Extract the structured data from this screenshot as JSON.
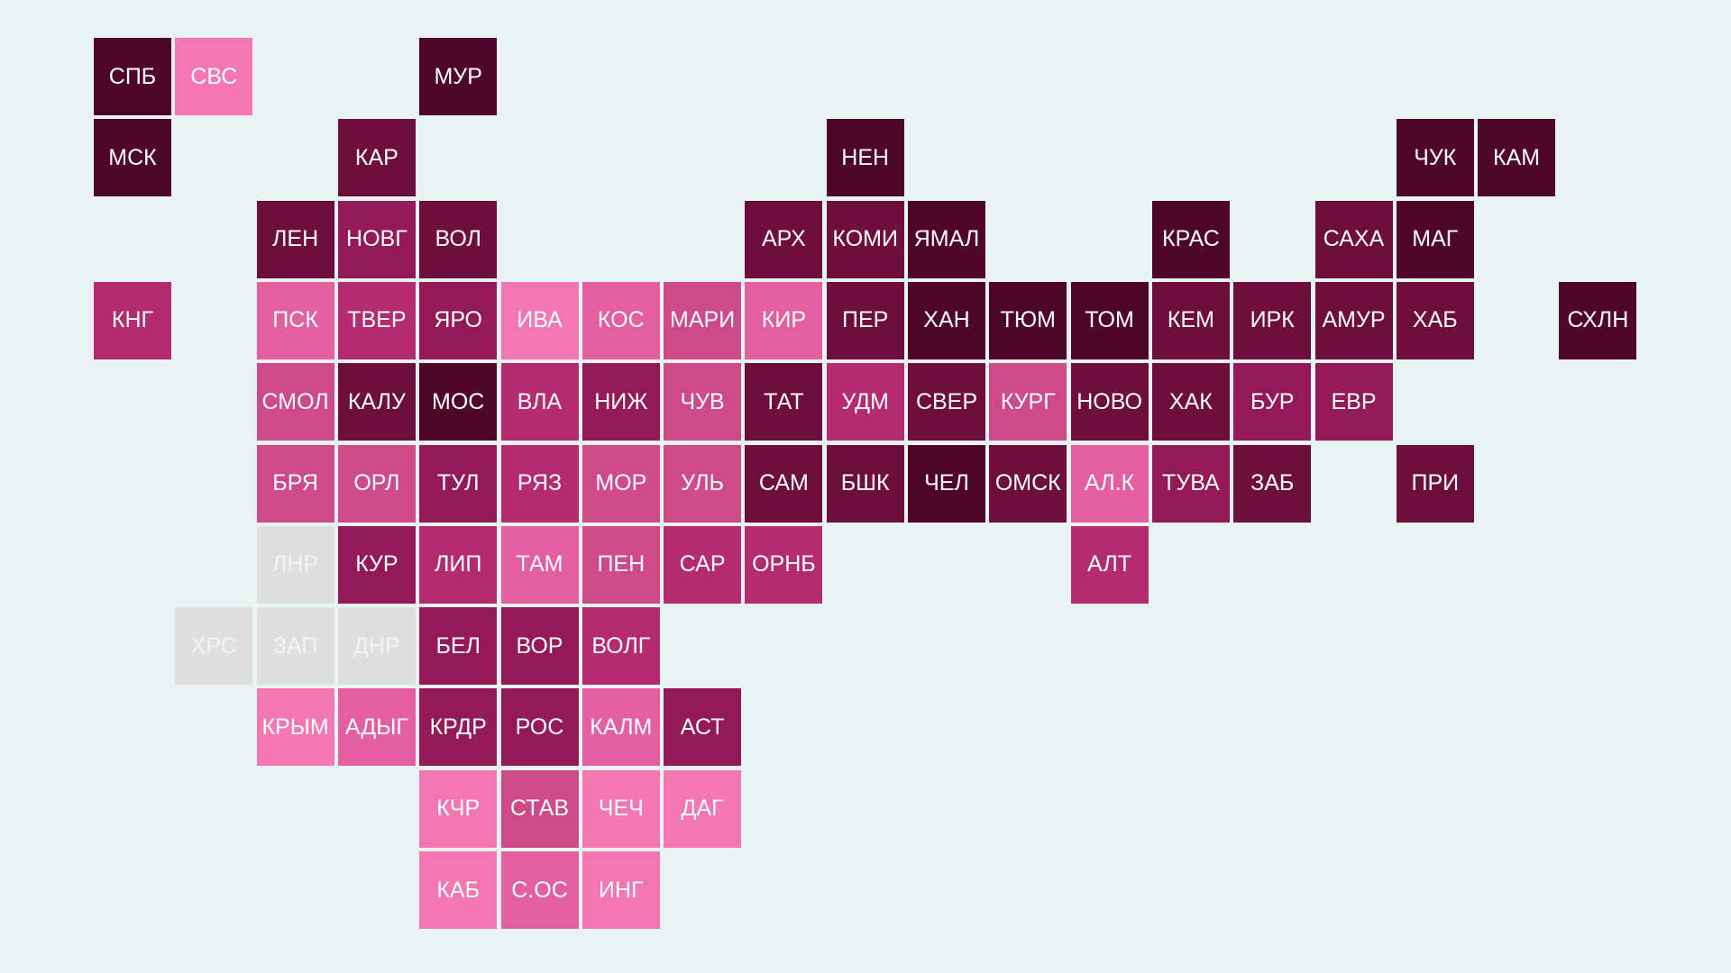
{
  "palette": {
    "background": "#e8f4f2",
    "no_data": "#dfdfdf",
    "levels": [
      "#f277b2",
      "#e45f9f",
      "#cf4a88",
      "#b42c6f",
      "#931a57",
      "#6e0e3d",
      "#4f052a"
    ],
    "text": "#ffffff"
  },
  "regions": [
    {
      "label": "СПБ",
      "col": 0,
      "row": 0,
      "level": 6
    },
    {
      "label": "СВС",
      "col": 1,
      "row": 0,
      "level": 0
    },
    {
      "label": "МУР",
      "col": 4,
      "row": 0,
      "level": 6
    },
    {
      "label": "МСК",
      "col": 0,
      "row": 1,
      "level": 6
    },
    {
      "label": "КАР",
      "col": 3,
      "row": 1,
      "level": 5
    },
    {
      "label": "НЕН",
      "col": 9,
      "row": 1,
      "level": 6
    },
    {
      "label": "ЧУК",
      "col": 16,
      "row": 1,
      "level": 6
    },
    {
      "label": "КАМ",
      "col": 17,
      "row": 1,
      "level": 6
    },
    {
      "label": "ЛЕН",
      "col": 2,
      "row": 2,
      "level": 5
    },
    {
      "label": "НОВГ",
      "col": 3,
      "row": 2,
      "level": 4
    },
    {
      "label": "ВОЛ",
      "col": 4,
      "row": 2,
      "level": 5
    },
    {
      "label": "АРХ",
      "col": 8,
      "row": 2,
      "level": 5
    },
    {
      "label": "КОМИ",
      "col": 9,
      "row": 2,
      "level": 5
    },
    {
      "label": "ЯМАЛ",
      "col": 10,
      "row": 2,
      "level": 6
    },
    {
      "label": "КРАС",
      "col": 13,
      "row": 2,
      "level": 6
    },
    {
      "label": "САХА",
      "col": 15,
      "row": 2,
      "level": 5
    },
    {
      "label": "МАГ",
      "col": 16,
      "row": 2,
      "level": 6
    },
    {
      "label": "КНГ",
      "col": 0,
      "row": 3,
      "level": 3
    },
    {
      "label": "ПСК",
      "col": 2,
      "row": 3,
      "level": 1
    },
    {
      "label": "ТВЕР",
      "col": 3,
      "row": 3,
      "level": 3
    },
    {
      "label": "ЯРО",
      "col": 4,
      "row": 3,
      "level": 4
    },
    {
      "label": "ИВА",
      "col": 5,
      "row": 3,
      "level": 0
    },
    {
      "label": "КОС",
      "col": 6,
      "row": 3,
      "level": 1
    },
    {
      "label": "МАРИ",
      "col": 7,
      "row": 3,
      "level": 2
    },
    {
      "label": "КИР",
      "col": 8,
      "row": 3,
      "level": 1
    },
    {
      "label": "ПЕР",
      "col": 9,
      "row": 3,
      "level": 5
    },
    {
      "label": "ХАН",
      "col": 10,
      "row": 3,
      "level": 6
    },
    {
      "label": "ТЮМ",
      "col": 11,
      "row": 3,
      "level": 6
    },
    {
      "label": "ТОМ",
      "col": 12,
      "row": 3,
      "level": 6
    },
    {
      "label": "КЕМ",
      "col": 13,
      "row": 3,
      "level": 5
    },
    {
      "label": "ИРК",
      "col": 14,
      "row": 3,
      "level": 5
    },
    {
      "label": "АМУР",
      "col": 15,
      "row": 3,
      "level": 5
    },
    {
      "label": "ХАБ",
      "col": 16,
      "row": 3,
      "level": 5
    },
    {
      "label": "СХЛН",
      "col": 18,
      "row": 3,
      "level": 6
    },
    {
      "label": "СМОЛ",
      "col": 2,
      "row": 4,
      "level": 2
    },
    {
      "label": "КАЛУ",
      "col": 3,
      "row": 4,
      "level": 5
    },
    {
      "label": "МОС",
      "col": 4,
      "row": 4,
      "level": 6
    },
    {
      "label": "ВЛА",
      "col": 5,
      "row": 4,
      "level": 3
    },
    {
      "label": "НИЖ",
      "col": 6,
      "row": 4,
      "level": 4
    },
    {
      "label": "ЧУВ",
      "col": 7,
      "row": 4,
      "level": 2
    },
    {
      "label": "ТАТ",
      "col": 8,
      "row": 4,
      "level": 5
    },
    {
      "label": "УДМ",
      "col": 9,
      "row": 4,
      "level": 3
    },
    {
      "label": "СВЕР",
      "col": 10,
      "row": 4,
      "level": 5
    },
    {
      "label": "КУРГ",
      "col": 11,
      "row": 4,
      "level": 2
    },
    {
      "label": "НОВО",
      "col": 12,
      "row": 4,
      "level": 5
    },
    {
      "label": "ХАК",
      "col": 13,
      "row": 4,
      "level": 5
    },
    {
      "label": "БУР",
      "col": 14,
      "row": 4,
      "level": 4
    },
    {
      "label": "ЕВР",
      "col": 15,
      "row": 4,
      "level": 4
    },
    {
      "label": "БРЯ",
      "col": 2,
      "row": 5,
      "level": 2
    },
    {
      "label": "ОРЛ",
      "col": 3,
      "row": 5,
      "level": 2
    },
    {
      "label": "ТУЛ",
      "col": 4,
      "row": 5,
      "level": 4
    },
    {
      "label": "РЯЗ",
      "col": 5,
      "row": 5,
      "level": 3
    },
    {
      "label": "МОР",
      "col": 6,
      "row": 5,
      "level": 2
    },
    {
      "label": "УЛЬ",
      "col": 7,
      "row": 5,
      "level": 2
    },
    {
      "label": "САМ",
      "col": 8,
      "row": 5,
      "level": 5
    },
    {
      "label": "БШК",
      "col": 9,
      "row": 5,
      "level": 5
    },
    {
      "label": "ЧЕЛ",
      "col": 10,
      "row": 5,
      "level": 6
    },
    {
      "label": "ОМСК",
      "col": 11,
      "row": 5,
      "level": 5
    },
    {
      "label": "АЛ.К",
      "col": 12,
      "row": 5,
      "level": 1
    },
    {
      "label": "ТУВА",
      "col": 13,
      "row": 5,
      "level": 4
    },
    {
      "label": "ЗАБ",
      "col": 14,
      "row": 5,
      "level": 5
    },
    {
      "label": "ПРИ",
      "col": 16,
      "row": 5,
      "level": 5
    },
    {
      "label": "ЛНР",
      "col": 2,
      "row": 6,
      "level": -1
    },
    {
      "label": "КУР",
      "col": 3,
      "row": 6,
      "level": 4
    },
    {
      "label": "ЛИП",
      "col": 4,
      "row": 6,
      "level": 3
    },
    {
      "label": "ТАМ",
      "col": 5,
      "row": 6,
      "level": 1
    },
    {
      "label": "ПЕН",
      "col": 6,
      "row": 6,
      "level": 2
    },
    {
      "label": "САР",
      "col": 7,
      "row": 6,
      "level": 3
    },
    {
      "label": "ОРНБ",
      "col": 8,
      "row": 6,
      "level": 3
    },
    {
      "label": "АЛТ",
      "col": 12,
      "row": 6,
      "level": 3
    },
    {
      "label": "ХРС",
      "col": 1,
      "row": 7,
      "level": -1
    },
    {
      "label": "ЗАП",
      "col": 2,
      "row": 7,
      "level": -1
    },
    {
      "label": "ДНР",
      "col": 3,
      "row": 7,
      "level": -1
    },
    {
      "label": "БЕЛ",
      "col": 4,
      "row": 7,
      "level": 4
    },
    {
      "label": "ВОР",
      "col": 5,
      "row": 7,
      "level": 4
    },
    {
      "label": "ВОЛГ",
      "col": 6,
      "row": 7,
      "level": 3
    },
    {
      "label": "КРЫМ",
      "col": 2,
      "row": 8,
      "level": 0
    },
    {
      "label": "АДЫГ",
      "col": 3,
      "row": 8,
      "level": 1
    },
    {
      "label": "КРДР",
      "col": 4,
      "row": 8,
      "level": 4
    },
    {
      "label": "РОС",
      "col": 5,
      "row": 8,
      "level": 4
    },
    {
      "label": "КАЛМ",
      "col": 6,
      "row": 8,
      "level": 1
    },
    {
      "label": "АСТ",
      "col": 7,
      "row": 8,
      "level": 4
    },
    {
      "label": "КЧР",
      "col": 4,
      "row": 9,
      "level": 0
    },
    {
      "label": "СТАВ",
      "col": 5,
      "row": 9,
      "level": 2
    },
    {
      "label": "ЧЕЧ",
      "col": 6,
      "row": 9,
      "level": 0
    },
    {
      "label": "ДАГ",
      "col": 7,
      "row": 9,
      "level": 0
    },
    {
      "label": "КАБ",
      "col": 4,
      "row": 10,
      "level": 0
    },
    {
      "label": "С.ОС",
      "col": 5,
      "row": 10,
      "level": 1
    },
    {
      "label": "ИНГ",
      "col": 6,
      "row": 10,
      "level": 0
    }
  ]
}
